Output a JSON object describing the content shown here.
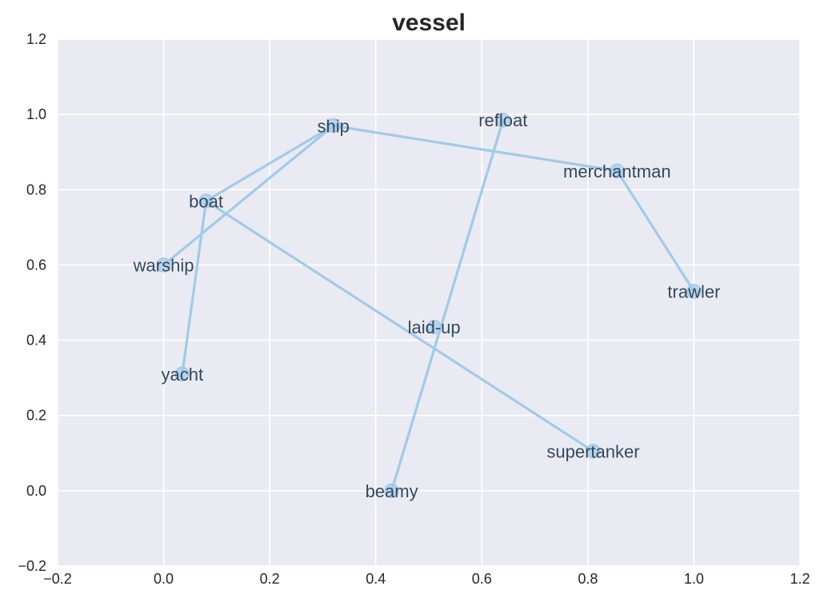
{
  "chart_data": {
    "type": "scatter",
    "title": "vessel",
    "xlabel": "",
    "ylabel": "",
    "xlim": [
      -0.2,
      1.2
    ],
    "ylim": [
      -0.2,
      1.2
    ],
    "xticks": [
      "−0.2",
      "0.0",
      "0.2",
      "0.4",
      "0.6",
      "0.8",
      "1.0",
      "1.2"
    ],
    "yticks": [
      "−0.2",
      "0.0",
      "0.2",
      "0.4",
      "0.6",
      "0.8",
      "1.0",
      "1.2"
    ],
    "grid": true,
    "colors": {
      "background": "#eaeaf2",
      "series": "#a0cbe8",
      "label": "#34495e"
    },
    "points": [
      {
        "label": "ship",
        "x": 0.32,
        "y": 0.97
      },
      {
        "label": "refloat",
        "x": 0.64,
        "y": 0.985
      },
      {
        "label": "merchantman",
        "x": 0.855,
        "y": 0.85
      },
      {
        "label": "boat",
        "x": 0.08,
        "y": 0.77
      },
      {
        "label": "warship",
        "x": 0.0,
        "y": 0.6
      },
      {
        "label": "trawler",
        "x": 1.0,
        "y": 0.53
      },
      {
        "label": "laid-up",
        "x": 0.51,
        "y": 0.435
      },
      {
        "label": "yacht",
        "x": 0.035,
        "y": 0.31
      },
      {
        "label": "supertanker",
        "x": 0.81,
        "y": 0.105
      },
      {
        "label": "beamy",
        "x": 0.43,
        "y": 0.0
      }
    ],
    "edges": [
      [
        "ship",
        "boat"
      ],
      [
        "ship",
        "warship"
      ],
      [
        "ship",
        "merchantman"
      ],
      [
        "merchantman",
        "trawler"
      ],
      [
        "boat",
        "yacht"
      ],
      [
        "boat",
        "supertanker"
      ],
      [
        "refloat",
        "beamy"
      ]
    ]
  }
}
